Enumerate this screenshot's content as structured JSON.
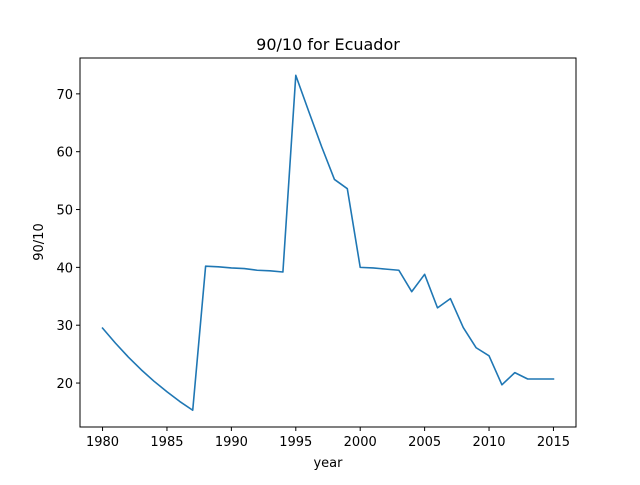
{
  "chart_data": {
    "type": "line",
    "title": "90/10 for Ecuador",
    "xlabel": "year",
    "ylabel": "90/10",
    "xlim": [
      1978.25,
      2016.75
    ],
    "ylim": [
      12.4,
      76.2
    ],
    "xticks": [
      1980,
      1985,
      1990,
      1995,
      2000,
      2005,
      2010,
      2015
    ],
    "yticks": [
      20,
      30,
      40,
      50,
      60,
      70
    ],
    "grid": false,
    "legend": "none",
    "series": [
      {
        "color": "#1f77b4",
        "x": [
          1980,
          1981,
          1982,
          1983,
          1984,
          1985,
          1986,
          1987,
          1988,
          1989,
          1990,
          1991,
          1992,
          1993,
          1994,
          1995,
          1996,
          1997,
          1998,
          1999,
          2000,
          2001,
          2002,
          2003,
          2004,
          2005,
          2006,
          2007,
          2008,
          2009,
          2010,
          2011,
          2012,
          2013,
          2014,
          2015
        ],
        "y": [
          29.5,
          26.9,
          24.5,
          22.3,
          20.3,
          18.5,
          16.8,
          15.3,
          40.2,
          40.1,
          39.9,
          39.8,
          39.5,
          39.4,
          39.2,
          73.2,
          67.0,
          60.9,
          55.2,
          53.6,
          40.0,
          39.9,
          39.7,
          39.5,
          35.8,
          38.8,
          33.0,
          34.6,
          29.6,
          26.1,
          24.7,
          19.7,
          21.8,
          20.7,
          20.7,
          20.7
        ]
      }
    ]
  }
}
